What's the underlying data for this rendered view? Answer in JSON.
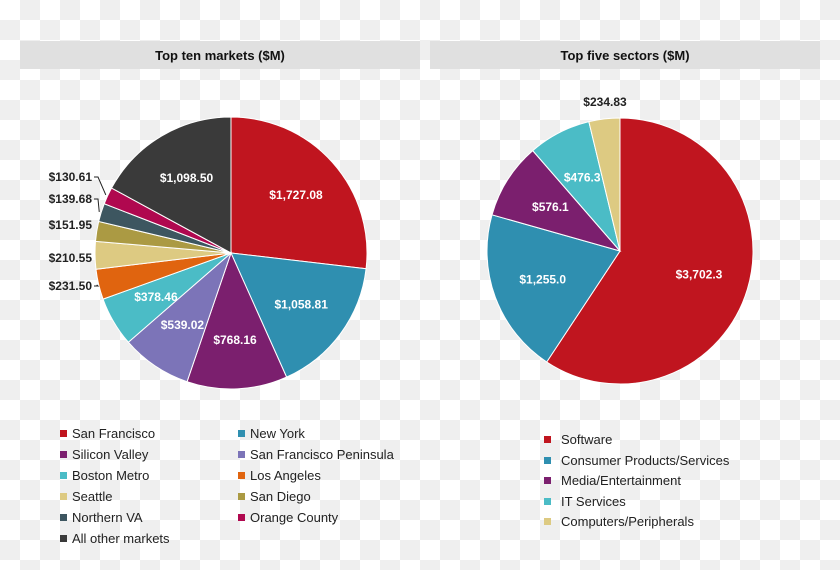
{
  "chart_data": [
    {
      "type": "pie",
      "title": "Top ten markets ($M)",
      "categories": [
        "San Francisco",
        "New York",
        "Silicon Valley",
        "San Francisco Peninsula",
        "Boston Metro",
        "Los Angeles",
        "Seattle",
        "San Diego",
        "Northern VA",
        "Orange County",
        "All  other markets"
      ],
      "values": [
        1727.08,
        1058.81,
        768.16,
        539.02,
        378.46,
        231.5,
        210.55,
        151.95,
        139.68,
        130.61,
        1098.5
      ],
      "labels": [
        "$1,727.08",
        "$1,058.81",
        "$768.16",
        "$539.02",
        "$378.46",
        "$231.50",
        "$210.55",
        "$151.95",
        "$139.68",
        "$130.61",
        "$1,098.50"
      ],
      "colors": [
        "#c0151f",
        "#2f8fb0",
        "#7b1f6e",
        "#7c74b8",
        "#4bbcc6",
        "#e0640f",
        "#ddca82",
        "#ab9a43",
        "#3d5660",
        "#b0084f",
        "#3a3a3a"
      ],
      "legend_position": "bottom"
    },
    {
      "type": "pie",
      "title": "Top five sectors ($M)",
      "categories": [
        "Software",
        "Consumer Products/Services",
        "Media/Entertainment",
        "IT Services",
        "Computers/Peripherals"
      ],
      "values": [
        3702.3,
        1255.0,
        576.1,
        476.3,
        234.83
      ],
      "labels": [
        "$3,702.3",
        "$1,255.0",
        "$576.1",
        "$476.3",
        "$234.83"
      ],
      "colors": [
        "#c0151f",
        "#2f8fb0",
        "#7b1f6e",
        "#4bbcc6",
        "#ddca82"
      ],
      "legend_position": "bottom"
    }
  ]
}
